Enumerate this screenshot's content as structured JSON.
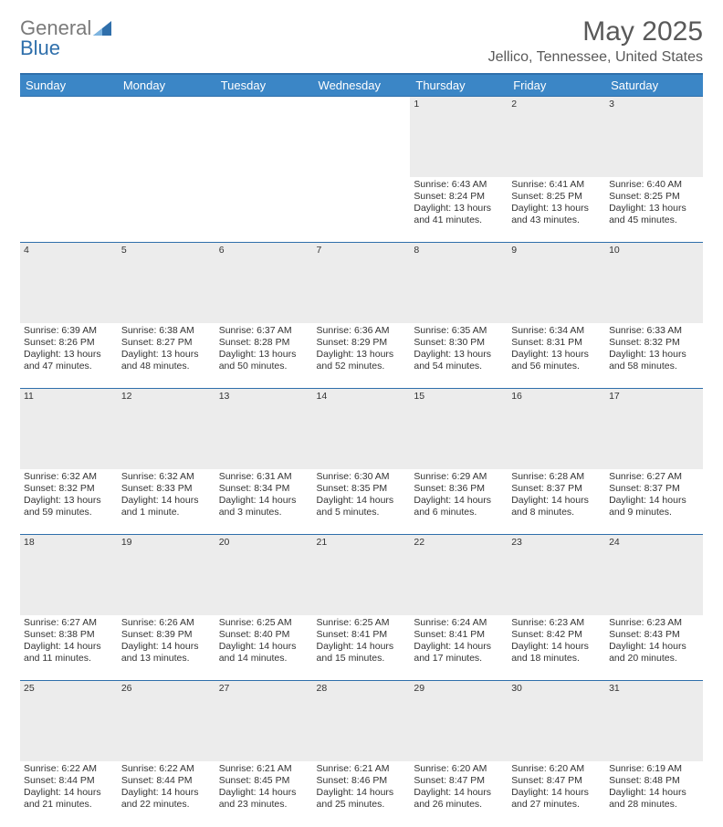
{
  "logo": {
    "part1": "General",
    "part2": "Blue"
  },
  "title": "May 2025",
  "location": "Jellico, Tennessee, United States",
  "day_headers": [
    "Sunday",
    "Monday",
    "Tuesday",
    "Wednesday",
    "Thursday",
    "Friday",
    "Saturday"
  ],
  "colors": {
    "header_bg": "#3b86c6",
    "header_border": "#2f6fab",
    "daynum_bg": "#ececec",
    "text": "#333333",
    "logo_gray": "#7a7a7a",
    "logo_blue": "#2f6fab"
  },
  "weeks": [
    [
      {
        "day": "",
        "lines": []
      },
      {
        "day": "",
        "lines": []
      },
      {
        "day": "",
        "lines": []
      },
      {
        "day": "",
        "lines": []
      },
      {
        "day": "1",
        "lines": [
          "Sunrise: 6:43 AM",
          "Sunset: 8:24 PM",
          "Daylight: 13 hours and 41 minutes."
        ]
      },
      {
        "day": "2",
        "lines": [
          "Sunrise: 6:41 AM",
          "Sunset: 8:25 PM",
          "Daylight: 13 hours and 43 minutes."
        ]
      },
      {
        "day": "3",
        "lines": [
          "Sunrise: 6:40 AM",
          "Sunset: 8:25 PM",
          "Daylight: 13 hours and 45 minutes."
        ]
      }
    ],
    [
      {
        "day": "4",
        "lines": [
          "Sunrise: 6:39 AM",
          "Sunset: 8:26 PM",
          "Daylight: 13 hours and 47 minutes."
        ]
      },
      {
        "day": "5",
        "lines": [
          "Sunrise: 6:38 AM",
          "Sunset: 8:27 PM",
          "Daylight: 13 hours and 48 minutes."
        ]
      },
      {
        "day": "6",
        "lines": [
          "Sunrise: 6:37 AM",
          "Sunset: 8:28 PM",
          "Daylight: 13 hours and 50 minutes."
        ]
      },
      {
        "day": "7",
        "lines": [
          "Sunrise: 6:36 AM",
          "Sunset: 8:29 PM",
          "Daylight: 13 hours and 52 minutes."
        ]
      },
      {
        "day": "8",
        "lines": [
          "Sunrise: 6:35 AM",
          "Sunset: 8:30 PM",
          "Daylight: 13 hours and 54 minutes."
        ]
      },
      {
        "day": "9",
        "lines": [
          "Sunrise: 6:34 AM",
          "Sunset: 8:31 PM",
          "Daylight: 13 hours and 56 minutes."
        ]
      },
      {
        "day": "10",
        "lines": [
          "Sunrise: 6:33 AM",
          "Sunset: 8:32 PM",
          "Daylight: 13 hours and 58 minutes."
        ]
      }
    ],
    [
      {
        "day": "11",
        "lines": [
          "Sunrise: 6:32 AM",
          "Sunset: 8:32 PM",
          "Daylight: 13 hours and 59 minutes."
        ]
      },
      {
        "day": "12",
        "lines": [
          "Sunrise: 6:32 AM",
          "Sunset: 8:33 PM",
          "Daylight: 14 hours and 1 minute."
        ]
      },
      {
        "day": "13",
        "lines": [
          "Sunrise: 6:31 AM",
          "Sunset: 8:34 PM",
          "Daylight: 14 hours and 3 minutes."
        ]
      },
      {
        "day": "14",
        "lines": [
          "Sunrise: 6:30 AM",
          "Sunset: 8:35 PM",
          "Daylight: 14 hours and 5 minutes."
        ]
      },
      {
        "day": "15",
        "lines": [
          "Sunrise: 6:29 AM",
          "Sunset: 8:36 PM",
          "Daylight: 14 hours and 6 minutes."
        ]
      },
      {
        "day": "16",
        "lines": [
          "Sunrise: 6:28 AM",
          "Sunset: 8:37 PM",
          "Daylight: 14 hours and 8 minutes."
        ]
      },
      {
        "day": "17",
        "lines": [
          "Sunrise: 6:27 AM",
          "Sunset: 8:37 PM",
          "Daylight: 14 hours and 9 minutes."
        ]
      }
    ],
    [
      {
        "day": "18",
        "lines": [
          "Sunrise: 6:27 AM",
          "Sunset: 8:38 PM",
          "Daylight: 14 hours and 11 minutes."
        ]
      },
      {
        "day": "19",
        "lines": [
          "Sunrise: 6:26 AM",
          "Sunset: 8:39 PM",
          "Daylight: 14 hours and 13 minutes."
        ]
      },
      {
        "day": "20",
        "lines": [
          "Sunrise: 6:25 AM",
          "Sunset: 8:40 PM",
          "Daylight: 14 hours and 14 minutes."
        ]
      },
      {
        "day": "21",
        "lines": [
          "Sunrise: 6:25 AM",
          "Sunset: 8:41 PM",
          "Daylight: 14 hours and 15 minutes."
        ]
      },
      {
        "day": "22",
        "lines": [
          "Sunrise: 6:24 AM",
          "Sunset: 8:41 PM",
          "Daylight: 14 hours and 17 minutes."
        ]
      },
      {
        "day": "23",
        "lines": [
          "Sunrise: 6:23 AM",
          "Sunset: 8:42 PM",
          "Daylight: 14 hours and 18 minutes."
        ]
      },
      {
        "day": "24",
        "lines": [
          "Sunrise: 6:23 AM",
          "Sunset: 8:43 PM",
          "Daylight: 14 hours and 20 minutes."
        ]
      }
    ],
    [
      {
        "day": "25",
        "lines": [
          "Sunrise: 6:22 AM",
          "Sunset: 8:44 PM",
          "Daylight: 14 hours and 21 minutes."
        ]
      },
      {
        "day": "26",
        "lines": [
          "Sunrise: 6:22 AM",
          "Sunset: 8:44 PM",
          "Daylight: 14 hours and 22 minutes."
        ]
      },
      {
        "day": "27",
        "lines": [
          "Sunrise: 6:21 AM",
          "Sunset: 8:45 PM",
          "Daylight: 14 hours and 23 minutes."
        ]
      },
      {
        "day": "28",
        "lines": [
          "Sunrise: 6:21 AM",
          "Sunset: 8:46 PM",
          "Daylight: 14 hours and 25 minutes."
        ]
      },
      {
        "day": "29",
        "lines": [
          "Sunrise: 6:20 AM",
          "Sunset: 8:47 PM",
          "Daylight: 14 hours and 26 minutes."
        ]
      },
      {
        "day": "30",
        "lines": [
          "Sunrise: 6:20 AM",
          "Sunset: 8:47 PM",
          "Daylight: 14 hours and 27 minutes."
        ]
      },
      {
        "day": "31",
        "lines": [
          "Sunrise: 6:19 AM",
          "Sunset: 8:48 PM",
          "Daylight: 14 hours and 28 minutes."
        ]
      }
    ]
  ]
}
